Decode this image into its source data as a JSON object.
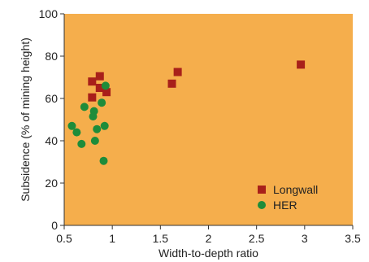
{
  "chart_data": {
    "type": "scatter",
    "title": "",
    "xlabel": "Width-to-depth ratio",
    "ylabel": "Subsidence (% of mining height)",
    "xlim": [
      0.5,
      3.5
    ],
    "ylim": [
      0,
      100
    ],
    "x_ticks": [
      "0.5",
      "1",
      "1.5",
      "2",
      "2.5",
      "3",
      "3.5"
    ],
    "y_ticks": [
      "0",
      "20",
      "40",
      "60",
      "80",
      "100"
    ],
    "grid": false,
    "legend_position": "bottom-right",
    "background_color": "#F5AE4C",
    "series": [
      {
        "name": "Longwall",
        "marker": "square",
        "color": "#A8201A",
        "points": [
          {
            "x": 0.79,
            "y": 68
          },
          {
            "x": 0.87,
            "y": 70.5
          },
          {
            "x": 0.87,
            "y": 65
          },
          {
            "x": 0.79,
            "y": 60.5
          },
          {
            "x": 0.94,
            "y": 63
          },
          {
            "x": 1.62,
            "y": 67
          },
          {
            "x": 1.68,
            "y": 72.5
          },
          {
            "x": 2.96,
            "y": 76
          }
        ]
      },
      {
        "name": "HER",
        "marker": "circle",
        "color": "#1E8C3A",
        "points": [
          {
            "x": 0.93,
            "y": 66
          },
          {
            "x": 0.71,
            "y": 56
          },
          {
            "x": 0.81,
            "y": 54
          },
          {
            "x": 0.89,
            "y": 58
          },
          {
            "x": 0.8,
            "y": 51.5
          },
          {
            "x": 0.58,
            "y": 47
          },
          {
            "x": 0.92,
            "y": 47
          },
          {
            "x": 0.84,
            "y": 45.5
          },
          {
            "x": 0.63,
            "y": 44
          },
          {
            "x": 0.82,
            "y": 40
          },
          {
            "x": 0.68,
            "y": 38.5
          },
          {
            "x": 0.91,
            "y": 30.5
          }
        ]
      }
    ]
  }
}
